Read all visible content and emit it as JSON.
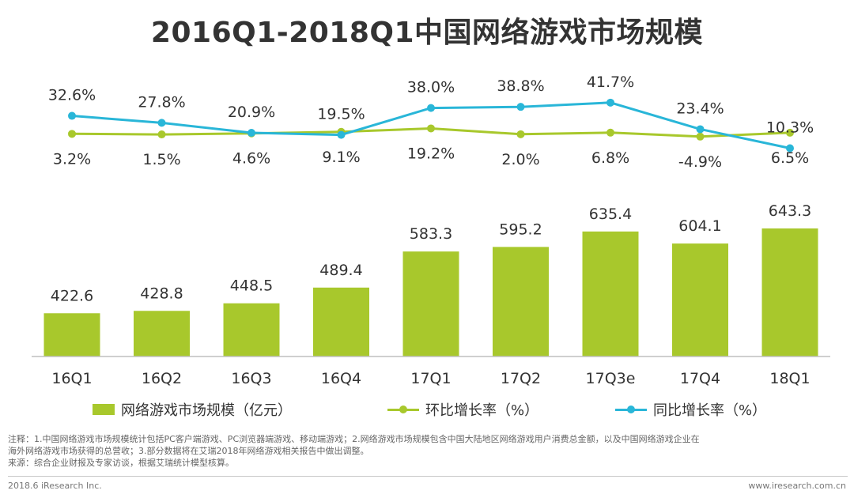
{
  "title": "2016Q1-2018Q1中国网络游戏市场规模",
  "chart_data": {
    "type": "bar",
    "title": "2016Q1-2018Q1中国网络游戏市场规模",
    "categories": [
      "16Q1",
      "16Q2",
      "16Q3",
      "16Q4",
      "17Q1",
      "17Q2",
      "17Q3e",
      "17Q4",
      "18Q1"
    ],
    "series": [
      {
        "name": "网络游戏市场规模（亿元）",
        "type": "bar",
        "color": "#a8c82c",
        "values": [
          422.6,
          428.8,
          448.5,
          489.4,
          583.3,
          595.2,
          635.4,
          604.1,
          643.3
        ],
        "labels": [
          "422.6",
          "428.8",
          "448.5",
          "489.4",
          "583.3",
          "595.2",
          "635.4",
          "604.1",
          "643.3"
        ]
      },
      {
        "name": "环比增长率（%）",
        "type": "line",
        "color": "#a8c82c",
        "values": [
          3.2,
          1.5,
          4.6,
          9.1,
          19.2,
          2.0,
          6.8,
          -4.9,
          6.5
        ],
        "labels": [
          "3.2%",
          "1.5%",
          "4.6%",
          "9.1%",
          "19.2%",
          "2.0%",
          "6.8%",
          "-4.9%",
          "6.5%"
        ]
      },
      {
        "name": "同比增长率（%）",
        "type": "line",
        "color": "#29b6d8",
        "values": [
          32.6,
          27.8,
          20.9,
          19.5,
          38.0,
          38.8,
          41.7,
          23.4,
          10.3
        ],
        "labels": [
          "32.6%",
          "27.8%",
          "20.9%",
          "19.5%",
          "38.0%",
          "38.8%",
          "41.7%",
          "23.4%",
          "10.3%"
        ]
      }
    ],
    "xlabel": "",
    "ylabel": "",
    "grid": false,
    "legend": "bottom"
  },
  "legend": {
    "bar": "网络游戏市场规模（亿元）",
    "qoq": "环比增长率（%）",
    "yoy": "同比增长率（%）"
  },
  "notes": {
    "line1": "注释：1.中国网络游戏市场规模统计包括PC客户端游戏、PC浏览器端游戏、移动端游戏；2.网络游戏市场规模包含中国大陆地区网络游戏用户消费总金额，以及中国网络游戏企业在",
    "line2": "海外网络游戏市场获得的总营收；3.部分数据将在艾瑞2018年网络游戏相关报告中做出调整。",
    "line3": "来源：综合企业财报及专家访谈，根据艾瑞统计模型核算。"
  },
  "footer": {
    "left": "2018.6 iResearch Inc.",
    "right": "www.iresearch.com.cn"
  }
}
